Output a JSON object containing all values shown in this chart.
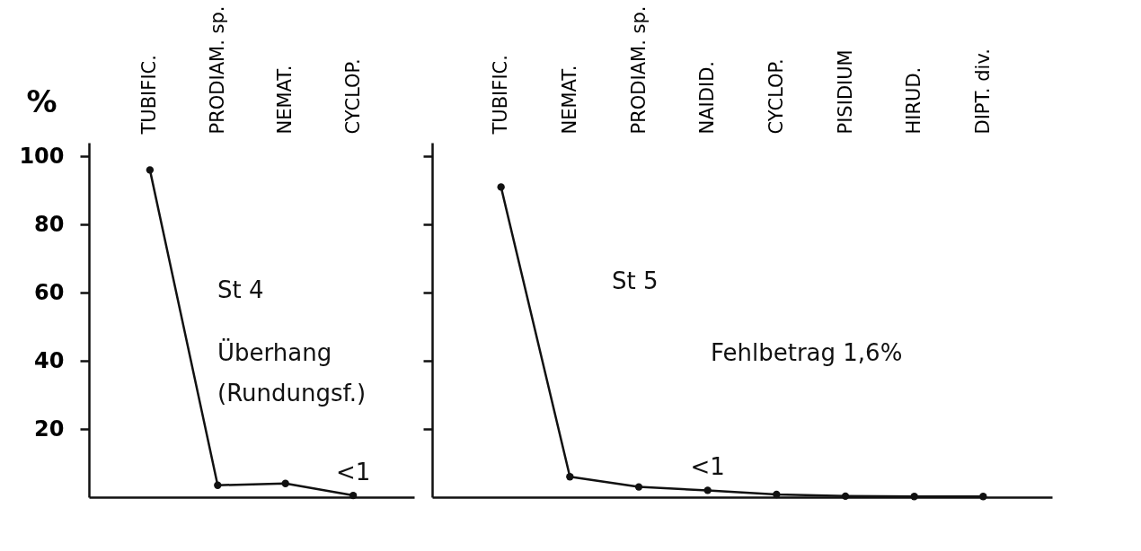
{
  "chart_data": [
    {
      "type": "line",
      "ylabel": "%",
      "categories": [
        "TUBIFIC.",
        "PRODIAM. sp.",
        "NEMAT.",
        "CYCLOP."
      ],
      "values": [
        96,
        3.5,
        4,
        0.5
      ],
      "color": "#111111",
      "marker": "circle",
      "ylim": [
        0,
        104
      ],
      "yticks": [
        20,
        40,
        60,
        80,
        100
      ],
      "grid": false,
      "annotations": [
        "St 4",
        "Überhang",
        "(Rundungsf.)",
        {
          "text": "<1",
          "x": "CYCLOP.",
          "y": 0.5
        }
      ]
    },
    {
      "type": "line",
      "categories": [
        "TUBIFIC.",
        "NEMAT.",
        "PRODIAM. sp.",
        "NAIDID.",
        "CYCLOP.",
        "PISIDIUM",
        "HIRUD.",
        "DIPT. div."
      ],
      "values": [
        91,
        6,
        3,
        2,
        0.8,
        0.3,
        0.2,
        0.2
      ],
      "color": "#111111",
      "marker": "circle",
      "ylim": [
        0,
        104
      ],
      "yticks": [
        20,
        40,
        60,
        80,
        100
      ],
      "grid": false,
      "tick_labels": "x",
      "annotations": [
        "St 5",
        "Fehlbetrag 1,6%",
        {
          "text": "<1",
          "x": "NAIDID.",
          "y": 2
        }
      ]
    }
  ]
}
